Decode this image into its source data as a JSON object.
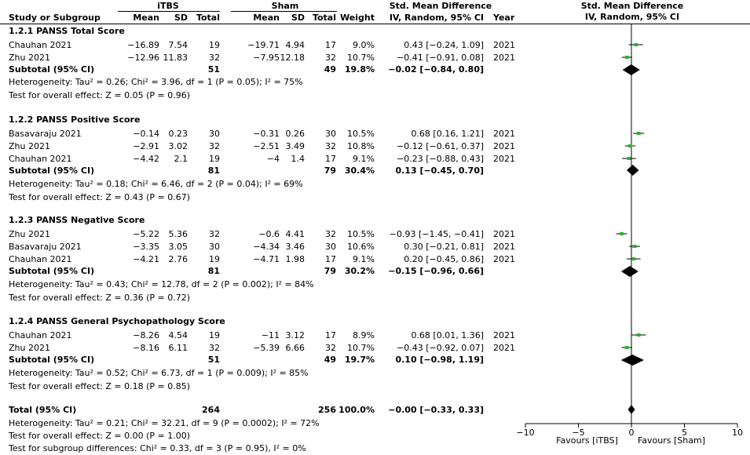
{
  "headers": {
    "group1": "iTBS",
    "group2": "Sham",
    "smd_title": "Std. Mean Difference",
    "smd_method": "IV, Random, 95% CI",
    "plot_title": "Std. Mean Difference",
    "plot_method": "IV, Random, 95% CI",
    "cols": {
      "study": "Study or Subgroup",
      "mean1": "Mean",
      "sd1": "SD",
      "total1": "Total",
      "mean2": "Mean",
      "sd2": "SD",
      "total2": "Total",
      "weight": "Weight",
      "ci": "IV, Random, 95% CI",
      "year": "Year"
    }
  },
  "subgroups": [
    {
      "title": "1.2.1 PANSS Total Score",
      "studies": [
        {
          "name": "Chauhan 2021",
          "mean1": "−16.89",
          "sd1": "7.54",
          "total1": "19",
          "mean2": "−19.71",
          "sd2": "4.94",
          "total2": "17",
          "weight": "9.0%",
          "ci": "0.43 [−0.24, 1.09]",
          "year": "2021"
        },
        {
          "name": "Zhu 2021",
          "mean1": "−12.96",
          "sd1": "11.83",
          "total1": "32",
          "mean2": "−7.95",
          "sd2": "12.18",
          "total2": "32",
          "weight": "10.7%",
          "ci": "−0.41 [−0.91, 0.08]",
          "year": "2021"
        }
      ],
      "subtotal": {
        "label": "Subtotal (95% CI)",
        "total1": "51",
        "total2": "49",
        "weight": "19.8%",
        "ci": "−0.02 [−0.84, 0.80]"
      },
      "heterogeneity": "Heterogeneity: Tau² = 0.26; Chi² = 3.96, df = 1 (P = 0.05); I² = 75%",
      "overall": "Test for overall effect: Z = 0.05 (P = 0.96)"
    },
    {
      "title": "1.2.2 PANSS Positive Score",
      "studies": [
        {
          "name": "Basavaraju 2021",
          "mean1": "−0.14",
          "sd1": "0.23",
          "total1": "30",
          "mean2": "−0.31",
          "sd2": "0.26",
          "total2": "30",
          "weight": "10.5%",
          "ci": "0.68 [0.16, 1.21]",
          "year": "2021"
        },
        {
          "name": "Zhu 2021",
          "mean1": "−2.91",
          "sd1": "3.02",
          "total1": "32",
          "mean2": "−2.51",
          "sd2": "3.49",
          "total2": "32",
          "weight": "10.8%",
          "ci": "−0.12 [−0.61, 0.37]",
          "year": "2021"
        },
        {
          "name": "Chauhan 2021",
          "mean1": "−4.42",
          "sd1": "2.1",
          "total1": "19",
          "mean2": "−4",
          "sd2": "1.4",
          "total2": "17",
          "weight": "9.1%",
          "ci": "−0.23 [−0.88, 0.43]",
          "year": "2021"
        }
      ],
      "subtotal": {
        "label": "Subtotal (95% CI)",
        "total1": "81",
        "total2": "79",
        "weight": "30.4%",
        "ci": "0.13 [−0.45, 0.70]"
      },
      "heterogeneity": "Heterogeneity: Tau² = 0.18; Chi² = 6.46, df = 2 (P = 0.04); I² = 69%",
      "overall": "Test for overall effect: Z = 0.43 (P = 0.67)"
    },
    {
      "title": "1.2.3 PANSS Negative Score",
      "studies": [
        {
          "name": "Zhu 2021",
          "mean1": "−5.22",
          "sd1": "5.36",
          "total1": "32",
          "mean2": "−0.6",
          "sd2": "4.41",
          "total2": "32",
          "weight": "10.5%",
          "ci": "−0.93 [−1.45, −0.41]",
          "year": "2021"
        },
        {
          "name": "Basavaraju 2021",
          "mean1": "−3.35",
          "sd1": "3.05",
          "total1": "30",
          "mean2": "−4.34",
          "sd2": "3.46",
          "total2": "30",
          "weight": "10.6%",
          "ci": "0.30 [−0.21, 0.81]",
          "year": "2021"
        },
        {
          "name": "Chauhan 2021",
          "mean1": "−4.21",
          "sd1": "2.76",
          "total1": "19",
          "mean2": "−4.71",
          "sd2": "1.98",
          "total2": "17",
          "weight": "9.1%",
          "ci": "0.20 [−0.45, 0.86]",
          "year": "2021"
        }
      ],
      "subtotal": {
        "label": "Subtotal (95% CI)",
        "total1": "81",
        "total2": "79",
        "weight": "30.2%",
        "ci": "−0.15 [−0.96, 0.66]"
      },
      "heterogeneity": "Heterogeneity: Tau² = 0.43; Chi² = 12.78, df = 2 (P = 0.002); I² = 84%",
      "overall": "Test for overall effect: Z = 0.36 (P = 0.72)"
    },
    {
      "title": "1.2.4 PANSS General Psychopathology Score",
      "studies": [
        {
          "name": "Chauhan 2021",
          "mean1": "−8.26",
          "sd1": "4.54",
          "total1": "19",
          "mean2": "−11",
          "sd2": "3.12",
          "total2": "17",
          "weight": "8.9%",
          "ci": "0.68 [0.01, 1.36]",
          "year": "2021"
        },
        {
          "name": "Zhu 2021",
          "mean1": "−8.16",
          "sd1": "6.11",
          "total1": "32",
          "mean2": "−5.39",
          "sd2": "6.66",
          "total2": "32",
          "weight": "10.7%",
          "ci": "−0.43 [−0.92, 0.07]",
          "year": "2021"
        }
      ],
      "subtotal": {
        "label": "Subtotal (95% CI)",
        "total1": "51",
        "total2": "49",
        "weight": "19.7%",
        "ci": "0.10 [−0.98, 1.19]"
      },
      "heterogeneity": "Heterogeneity: Tau² = 0.52; Chi² = 6.73, df = 1 (P = 0.009); I² = 85%",
      "overall": "Test for overall effect: Z = 0.18 (P = 0.85)"
    }
  ],
  "total": {
    "label": "Total (95% CI)",
    "total1": "264",
    "total2": "256",
    "weight": "100.0%",
    "ci": "−0.00 [−0.33, 0.33]",
    "heterogeneity": "Heterogeneity: Tau² = 0.21; Chi² = 32.21, df = 9 (P = 0.0002); I² = 72%",
    "overall": "Test for overall effect: Z = 0.00 (P = 1.00)",
    "subgroup_diff": "Test for subgroup differences: Chi² = 0.33, df = 3 (P = 0.95), I² = 0%"
  },
  "axis": {
    "favours_left": "Favours [iTBS]",
    "favours_right": "Favours [Sham]"
  },
  "colors": {
    "study_point": "#2db22d",
    "diamond": "#000000",
    "line": "#000000"
  },
  "chart_data": {
    "type": "forest",
    "xlim": [
      -10,
      10
    ],
    "ticks": [
      -10,
      -5,
      0,
      5,
      10
    ],
    "tick_labels": [
      "−10",
      "−5",
      "0",
      "5",
      "10"
    ],
    "rows": [
      {
        "kind": "study",
        "est": 0.43,
        "lo": -0.24,
        "hi": 1.09
      },
      {
        "kind": "study",
        "est": -0.41,
        "lo": -0.91,
        "hi": 0.08
      },
      {
        "kind": "subtotal",
        "est": -0.02,
        "lo": -0.84,
        "hi": 0.8
      },
      {
        "kind": "study",
        "est": 0.68,
        "lo": 0.16,
        "hi": 1.21
      },
      {
        "kind": "study",
        "est": -0.12,
        "lo": -0.61,
        "hi": 0.37
      },
      {
        "kind": "study",
        "est": -0.23,
        "lo": -0.88,
        "hi": 0.43
      },
      {
        "kind": "subtotal",
        "est": 0.13,
        "lo": -0.45,
        "hi": 0.7
      },
      {
        "kind": "study",
        "est": -0.93,
        "lo": -1.45,
        "hi": -0.41
      },
      {
        "kind": "study",
        "est": 0.3,
        "lo": -0.21,
        "hi": 0.81
      },
      {
        "kind": "study",
        "est": 0.2,
        "lo": -0.45,
        "hi": 0.86
      },
      {
        "kind": "subtotal",
        "est": -0.15,
        "lo": -0.96,
        "hi": 0.66
      },
      {
        "kind": "study",
        "est": 0.68,
        "lo": 0.01,
        "hi": 1.36
      },
      {
        "kind": "study",
        "est": -0.43,
        "lo": -0.92,
        "hi": 0.07
      },
      {
        "kind": "subtotal",
        "est": 0.1,
        "lo": -0.98,
        "hi": 1.19
      },
      {
        "kind": "total",
        "est": -0.0,
        "lo": -0.33,
        "hi": 0.33
      }
    ]
  }
}
